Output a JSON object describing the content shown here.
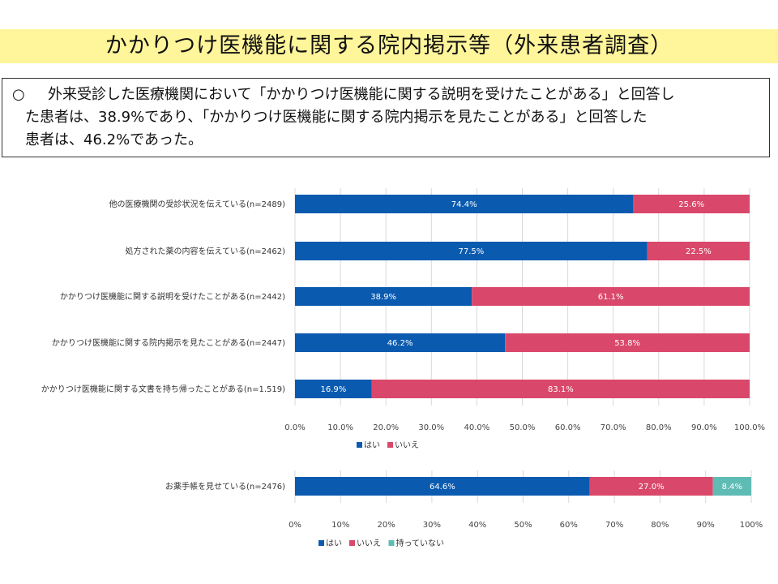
{
  "title": "かかりつけ医機能に関する院内掲示等（外来患者調査）",
  "summary": {
    "bullet": "○",
    "lines": [
      "外来受診した医療機関において「かかりつけ医機能に関する説明を受けたことがある」と回答し",
      "た患者は、38.9%であり、「かかりつけ医機能に関する院内掲示を見たことがある」と回答した",
      "患者は、46.2%であった。"
    ]
  },
  "colors": {
    "yes": "#0a5bb0",
    "no": "#d9486a",
    "none": "#5fbcb5",
    "grid": "#d9d9d9",
    "title_band": "#fff59a"
  },
  "chart_data": [
    {
      "type": "bar",
      "orientation": "horizontal-stacked",
      "categories": [
        "他の医療機関の受診状況を伝えている(n=2489)",
        "処方された薬の内容を伝えている(n=2462)",
        "かかりつけ医機能に関する説明を受けたことがある(n=2442)",
        "かかりつけ医機能に関する院内掲示を見たことがある(n=2447)",
        "かかりつけ医機能に関する文書を持ち帰ったことがある(n=1.519)"
      ],
      "series": [
        {
          "name": "はい",
          "values": [
            74.4,
            77.5,
            38.9,
            46.2,
            16.9
          ],
          "labels": [
            "74.4%",
            "77.5%",
            "38.9%",
            "46.2%",
            "16.9%"
          ]
        },
        {
          "name": "いいえ",
          "values": [
            25.6,
            22.5,
            61.1,
            53.8,
            83.1
          ],
          "labels": [
            "25.6%",
            "22.5%",
            "61.1%",
            "53.8%",
            "83.1%"
          ]
        }
      ],
      "xlim": [
        0,
        100
      ],
      "ticks": [
        "0.0%",
        "10.0%",
        "20.0%",
        "30.0%",
        "40.0%",
        "50.0%",
        "60.0%",
        "70.0%",
        "80.0%",
        "90.0%",
        "100.0%"
      ],
      "grid": true,
      "legend": "bottom"
    },
    {
      "type": "bar",
      "orientation": "horizontal-stacked",
      "categories": [
        "お薬手帳を見せている(n=2476)"
      ],
      "series": [
        {
          "name": "はい",
          "values": [
            64.6
          ],
          "labels": [
            "64.6%"
          ]
        },
        {
          "name": "いいえ",
          "values": [
            27.0
          ],
          "labels": [
            "27.0%"
          ]
        },
        {
          "name": "持っていない",
          "values": [
            8.4
          ],
          "labels": [
            "8.4%"
          ]
        }
      ],
      "xlim": [
        0,
        100
      ],
      "ticks": [
        "0%",
        "10%",
        "20%",
        "30%",
        "40%",
        "50%",
        "60%",
        "70%",
        "80%",
        "90%",
        "100%"
      ],
      "grid": true,
      "legend": "bottom"
    }
  ]
}
